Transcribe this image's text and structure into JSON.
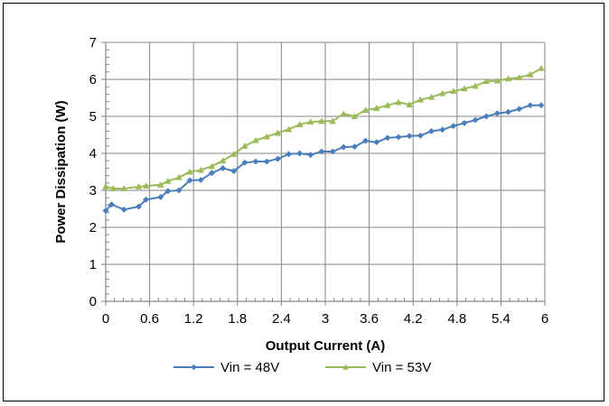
{
  "chart_data": {
    "type": "line",
    "xlabel": "Output Current (A)",
    "ylabel": "Power Dissipation (W)",
    "xlim": [
      0,
      6
    ],
    "ylim": [
      0,
      7
    ],
    "x_ticks": [
      "0",
      "0.6",
      "1.2",
      "1.8",
      "2.4",
      "3",
      "3.6",
      "4.2",
      "4.8",
      "5.4",
      "6"
    ],
    "y_ticks": [
      "0",
      "1",
      "2",
      "3",
      "4",
      "5",
      "6",
      "7"
    ],
    "grid": true,
    "legend_position": "bottom",
    "series": [
      {
        "name": "Vin = 48V",
        "color": "#4A7EBB",
        "marker": "diamond",
        "x": [
          0,
          0.08,
          0.25,
          0.45,
          0.55,
          0.75,
          0.85,
          1.0,
          1.15,
          1.3,
          1.45,
          1.6,
          1.75,
          1.9,
          2.05,
          2.2,
          2.35,
          2.5,
          2.65,
          2.8,
          2.95,
          3.1,
          3.25,
          3.4,
          3.55,
          3.7,
          3.85,
          4.0,
          4.15,
          4.3,
          4.45,
          4.6,
          4.75,
          4.9,
          5.05,
          5.2,
          5.35,
          5.5,
          5.65,
          5.8,
          5.95
        ],
        "y": [
          2.45,
          2.62,
          2.48,
          2.56,
          2.75,
          2.82,
          2.98,
          3.0,
          3.27,
          3.28,
          3.47,
          3.6,
          3.52,
          3.75,
          3.78,
          3.78,
          3.85,
          3.98,
          4.0,
          3.96,
          4.05,
          4.05,
          4.17,
          4.18,
          4.34,
          4.3,
          4.42,
          4.44,
          4.47,
          4.48,
          4.6,
          4.64,
          4.74,
          4.82,
          4.9,
          5.0,
          5.08,
          5.12,
          5.2,
          5.3,
          5.3
        ]
      },
      {
        "name": "Vin = 53V",
        "color": "#9BBB59",
        "marker": "triangle",
        "x": [
          0,
          0.1,
          0.25,
          0.45,
          0.55,
          0.75,
          0.85,
          1.0,
          1.15,
          1.3,
          1.45,
          1.6,
          1.75,
          1.9,
          2.05,
          2.2,
          2.35,
          2.5,
          2.65,
          2.8,
          2.95,
          3.1,
          3.25,
          3.4,
          3.55,
          3.7,
          3.85,
          4.0,
          4.15,
          4.3,
          4.45,
          4.6,
          4.75,
          4.9,
          5.05,
          5.2,
          5.35,
          5.5,
          5.65,
          5.8,
          5.95
        ],
        "y": [
          3.1,
          3.05,
          3.05,
          3.1,
          3.12,
          3.15,
          3.25,
          3.35,
          3.5,
          3.55,
          3.65,
          3.8,
          3.98,
          4.2,
          4.35,
          4.45,
          4.55,
          4.65,
          4.78,
          4.85,
          4.87,
          4.87,
          5.07,
          5.0,
          5.17,
          5.22,
          5.3,
          5.38,
          5.32,
          5.45,
          5.52,
          5.62,
          5.68,
          5.75,
          5.82,
          5.95,
          5.96,
          6.02,
          6.05,
          6.13,
          6.3
        ]
      }
    ]
  }
}
